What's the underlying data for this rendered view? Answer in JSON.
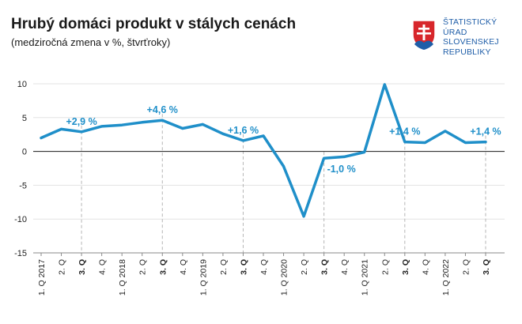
{
  "header": {
    "title": "Hrubý domáci produkt v stálych cenách",
    "subtitle": "(medziročná zmena v %, štvrťroky)"
  },
  "logo": {
    "lines": [
      "ŠTATISTICKÝ",
      "ÚRAD",
      "SLOVENSKEJ",
      "REPUBLIKY"
    ],
    "color": "#1f5ea8",
    "icon": "slovak-coat-of-arms-icon"
  },
  "chart_data": {
    "type": "line",
    "categories": [
      "1. Q 2017",
      "2. Q",
      "3. Q",
      "4. Q",
      "1. Q 2018",
      "2. Q",
      "3. Q",
      "4. Q",
      "1. Q 2019",
      "2. Q",
      "3. Q",
      "4. Q",
      "1. Q 2020",
      "2. Q",
      "3. Q",
      "4. Q",
      "1. Q 2021",
      "2. Q",
      "3. Q",
      "4. Q",
      "1. Q 2022",
      "2. Q",
      "3. Q"
    ],
    "bold_categories": [
      2,
      6,
      10,
      14,
      18,
      22
    ],
    "series": [
      {
        "values": [
          2.0,
          3.3,
          2.9,
          3.7,
          3.9,
          4.3,
          4.6,
          3.4,
          4.0,
          2.6,
          1.6,
          2.3,
          -2.2,
          -9.6,
          -1.0,
          -0.8,
          -0.1,
          9.9,
          1.4,
          1.3,
          3.0,
          1.3,
          1.4
        ],
        "color": "#1f8fc9"
      }
    ],
    "annotations": [
      {
        "index": 2,
        "text": "+2,9 %"
      },
      {
        "index": 6,
        "text": "+4,6 %"
      },
      {
        "index": 10,
        "text": "+1,6 %"
      },
      {
        "index": 14,
        "text": "-1,0 %"
      },
      {
        "index": 18,
        "text": "+1,4 %"
      },
      {
        "index": 22,
        "text": "+1,4 %"
      }
    ],
    "ylim": [
      -15,
      10
    ],
    "yticks": [
      10,
      5,
      0,
      -5,
      -10,
      -15
    ],
    "grid": true
  }
}
